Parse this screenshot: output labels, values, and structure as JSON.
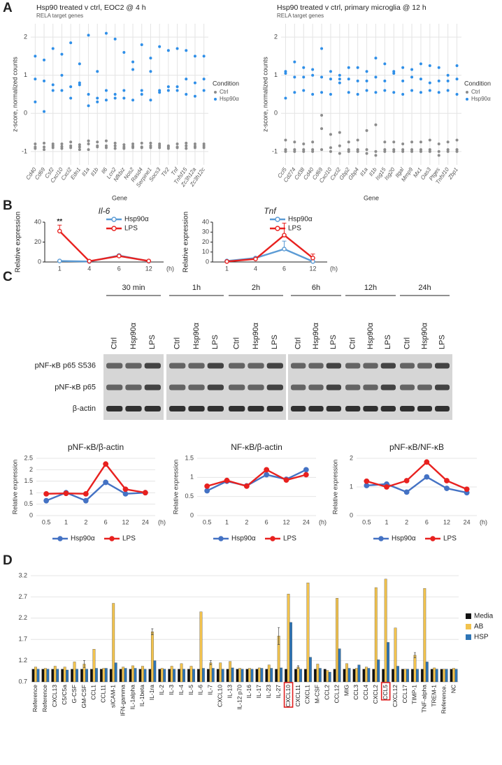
{
  "panels": [
    "A",
    "B",
    "C",
    "D"
  ],
  "blot": {
    "times": [
      "30 min",
      "1h",
      "2h",
      "6h",
      "12h",
      "24h"
    ],
    "lanes": [
      "Ctrl",
      "Hsp90α",
      "LPS"
    ],
    "rows": [
      "pNF-κB p65 S536",
      "pNF-κB p65",
      "β-actin"
    ]
  },
  "chart_data": [
    {
      "type": "strip",
      "title": "Hsp90 treated v ctrl, EOC2 @ 4 h",
      "subtitle": "RELA target genes",
      "xlabel": "Gene",
      "ylabel": "z-score, normalized counts",
      "legend_title": "Condition",
      "grid": true,
      "ylim": [
        -1.35,
        2.35
      ],
      "yticks": [
        -1,
        0,
        1,
        2
      ],
      "categories": [
        "Cd40",
        "Cd69",
        "Csf2",
        "Cxcl10",
        "Cxcl2",
        "Edn1",
        "Il1a",
        "Il1b",
        "Il6",
        "Lcn2",
        "Nfkbiz",
        "Nos2",
        "Rasd4",
        "Serpine1",
        "Socs3",
        "Tlr2",
        "Tnf",
        "Tnfsf15",
        "Zc3h12a",
        "Zc3h12c"
      ],
      "series": [
        {
          "name": "Ctrl",
          "color": "#8c8c8c",
          "values": [
            [
              -0.8,
              -0.88,
              -0.92
            ],
            [
              -0.78,
              -0.88,
              -0.95
            ],
            [
              -0.8,
              -0.85,
              -0.9
            ],
            [
              -0.8,
              -0.87,
              -0.92
            ],
            [
              -0.75,
              -0.85,
              -0.9
            ],
            [
              -0.82,
              -0.88,
              -0.95
            ],
            [
              -0.72,
              -0.8,
              -0.95
            ],
            [
              -0.75,
              -0.85,
              -0.88
            ],
            [
              -0.72,
              -0.85,
              -0.9
            ],
            [
              -0.78,
              -0.85,
              -0.92
            ],
            [
              -0.82,
              -0.88,
              -0.92
            ],
            [
              -0.8,
              -0.86,
              -0.9
            ],
            [
              -0.78,
              -0.88,
              -0.9
            ],
            [
              -0.78,
              -0.85,
              -0.9
            ],
            [
              -0.8,
              -0.85,
              -0.9
            ],
            [
              -0.85,
              -0.88,
              -0.92
            ],
            [
              -0.8,
              -0.88,
              -0.9
            ],
            [
              -0.78,
              -0.85,
              -0.92
            ],
            [
              -0.8,
              -0.86,
              -0.9
            ],
            [
              -0.8,
              -0.85,
              -0.9
            ]
          ]
        },
        {
          "name": "Hsp90α",
          "color": "#2f8fe8",
          "values": [
            [
              1.5,
              0.9,
              0.3
            ],
            [
              1.4,
              0.85,
              0.05
            ],
            [
              1.7,
              0.75,
              0.6
            ],
            [
              1.55,
              1.0,
              0.6
            ],
            [
              1.85,
              0.7,
              0.4
            ],
            [
              1.3,
              0.8,
              0.75
            ],
            [
              2.05,
              0.5,
              0.2
            ],
            [
              1.1,
              0.4,
              0.3
            ],
            [
              2.1,
              0.6,
              0.35
            ],
            [
              1.95,
              0.5,
              0.4
            ],
            [
              1.6,
              0.6,
              0.4
            ],
            [
              1.35,
              1.15,
              0.35
            ],
            [
              1.8,
              0.6,
              0.5
            ],
            [
              1.45,
              1.1,
              0.35
            ],
            [
              1.75,
              0.6,
              0.55
            ],
            [
              1.65,
              0.7,
              0.6
            ],
            [
              1.7,
              0.7,
              0.6
            ],
            [
              1.65,
              0.9,
              0.5
            ],
            [
              1.5,
              0.8,
              0.45
            ],
            [
              1.5,
              0.9,
              0.6
            ]
          ]
        }
      ]
    },
    {
      "type": "strip",
      "title": "Hsp90 treated v ctrl, primary microglia @ 12 h",
      "subtitle": "RELA target genes",
      "xlabel": "Gene",
      "ylabel": "z-score, normalized counts",
      "legend_title": "Condition",
      "grid": true,
      "ylim": [
        -1.35,
        2.35
      ],
      "yticks": [
        -1,
        0,
        1,
        2
      ],
      "categories": [
        "Ccl5",
        "Cd274",
        "Cd38",
        "Cd40",
        "Cd69",
        "Cxcl10",
        "Cxcl2",
        "Gbp2",
        "Gbp4",
        "Il1a",
        "Il1b",
        "Isg15",
        "Isg20",
        "Itgal",
        "Mmp9",
        "Mx1",
        "Oas3",
        "Ptges",
        "Tnfsf10",
        "Zbp1"
      ],
      "series": [
        {
          "name": "Ctrl",
          "color": "#8c8c8c",
          "values": [
            [
              -0.7,
              -0.95,
              -1.0
            ],
            [
              -0.75,
              -0.95,
              -1.0
            ],
            [
              -0.8,
              -0.95,
              -1.0
            ],
            [
              -0.75,
              -0.95,
              -1.0
            ],
            [
              -0.05,
              -0.4,
              -0.95
            ],
            [
              -0.55,
              -0.9,
              -1.0
            ],
            [
              -0.5,
              -0.85,
              -1.05
            ],
            [
              -0.75,
              -0.95,
              -1.0
            ],
            [
              -0.7,
              -0.95,
              -1.0
            ],
            [
              -0.45,
              -0.95,
              -1.05
            ],
            [
              -0.3,
              -1.0,
              -1.1
            ],
            [
              -0.75,
              -0.95,
              -1.0
            ],
            [
              -0.75,
              -0.95,
              -1.0
            ],
            [
              -0.8,
              -0.95,
              -1.0
            ],
            [
              -0.75,
              -0.95,
              -1.0
            ],
            [
              -0.75,
              -0.95,
              -1.0
            ],
            [
              -0.7,
              -0.95,
              -1.0
            ],
            [
              -0.8,
              -1.0,
              -1.1
            ],
            [
              -0.75,
              -0.95,
              -1.0
            ],
            [
              -0.7,
              -0.95,
              -1.0
            ]
          ]
        },
        {
          "name": "Hsp90α",
          "color": "#2f8fe8",
          "values": [
            [
              1.1,
              1.05,
              0.4
            ],
            [
              1.35,
              0.95,
              0.55
            ],
            [
              1.2,
              0.95,
              0.6
            ],
            [
              1.15,
              1.0,
              0.5
            ],
            [
              1.7,
              0.95,
              0.55
            ],
            [
              1.1,
              0.9,
              0.5
            ],
            [
              1.0,
              0.8,
              0.9
            ],
            [
              1.2,
              0.9,
              0.55
            ],
            [
              1.2,
              0.85,
              0.5
            ],
            [
              1.1,
              0.85,
              0.6
            ],
            [
              1.45,
              0.95,
              0.55
            ],
            [
              1.3,
              0.85,
              0.6
            ],
            [
              1.1,
              1.05,
              0.55
            ],
            [
              1.2,
              0.85,
              0.5
            ],
            [
              1.15,
              0.95,
              0.6
            ],
            [
              1.3,
              0.9,
              0.55
            ],
            [
              1.25,
              0.8,
              0.6
            ],
            [
              1.2,
              0.85,
              0.55
            ],
            [
              1.0,
              0.85,
              0.6
            ],
            [
              1.25,
              0.9,
              0.5
            ]
          ]
        }
      ]
    },
    {
      "type": "line",
      "title": "Il-6",
      "ylabel": "Relative expression",
      "xunit": "(h)",
      "grid": false,
      "legend": "top-right",
      "categories": [
        "1",
        "4",
        "6",
        "12"
      ],
      "ylim": [
        0,
        40
      ],
      "yticks": [
        0,
        20,
        40
      ],
      "significance_labels": [
        "**",
        null,
        null,
        null
      ],
      "series": [
        {
          "name": "Hsp90α",
          "color": "#5b9bd5",
          "values": [
            1,
            0.5,
            6.5,
            0.8
          ],
          "errors": [
            null,
            null,
            1,
            null
          ]
        },
        {
          "name": "LPS",
          "color": "#e8211f",
          "values": [
            31,
            0.8,
            6,
            1
          ],
          "errors": [
            6,
            null,
            1,
            null
          ]
        }
      ]
    },
    {
      "type": "line",
      "title": "Tnf",
      "ylabel": "Relative expression",
      "xunit": "(h)",
      "grid": false,
      "legend": "top-right",
      "categories": [
        "1",
        "4",
        "6",
        "12"
      ],
      "ylim": [
        0,
        40
      ],
      "yticks": [
        0,
        10,
        20,
        30,
        40
      ],
      "series": [
        {
          "name": "Hsp90α",
          "color": "#5b9bd5",
          "values": [
            1,
            4,
            13,
            0.5
          ],
          "errors": [
            null,
            1,
            8,
            null
          ]
        },
        {
          "name": "LPS",
          "color": "#e8211f",
          "values": [
            0.5,
            3,
            27,
            4
          ],
          "errors": [
            null,
            null,
            12,
            4
          ]
        }
      ]
    },
    {
      "type": "line",
      "title": "pNF-κB/β-actin",
      "ylabel": "Relative expression",
      "xunit": "(h)",
      "grid": true,
      "legend": "bottom",
      "categories": [
        "0.5",
        "1",
        "2",
        "6",
        "12",
        "24"
      ],
      "ylim": [
        0,
        2.5
      ],
      "yticks": [
        0,
        0.5,
        1,
        1.5,
        2,
        2.5
      ],
      "series": [
        {
          "name": "Hsp90α",
          "color": "#4472c4",
          "values": [
            0.65,
            1,
            0.65,
            1.45,
            0.95,
            1
          ]
        },
        {
          "name": "LPS",
          "color": "#e8211f",
          "values": [
            0.95,
            0.97,
            0.95,
            2.25,
            1.15,
            1
          ]
        }
      ]
    },
    {
      "type": "line",
      "title": "NF-κB/β-actin",
      "ylabel": "Relative expression",
      "xunit": "(h)",
      "grid": true,
      "legend": "bottom",
      "categories": [
        "0.5",
        "1",
        "2",
        "6",
        "12",
        "24"
      ],
      "ylim": [
        0,
        1.5
      ],
      "yticks": [
        0,
        0.5,
        1,
        1.5
      ],
      "series": [
        {
          "name": "Hsp90α",
          "color": "#4472c4",
          "values": [
            0.65,
            0.9,
            0.78,
            1.07,
            0.95,
            1.2
          ]
        },
        {
          "name": "LPS",
          "color": "#e8211f",
          "values": [
            0.77,
            0.92,
            0.77,
            1.2,
            0.93,
            1.07
          ]
        }
      ]
    },
    {
      "type": "line",
      "title": "pNF-κB/NF-κB",
      "ylabel": "Relative expression",
      "xunit": "(h)",
      "grid": true,
      "legend": "bottom",
      "categories": [
        "0.5",
        "1",
        "2",
        "6",
        "12",
        "24"
      ],
      "ylim": [
        0,
        2
      ],
      "yticks": [
        0,
        1,
        2
      ],
      "series": [
        {
          "name": "Hsp90α",
          "color": "#4472c4",
          "values": [
            1.05,
            1.1,
            0.82,
            1.35,
            0.95,
            0.8
          ]
        },
        {
          "name": "LPS",
          "color": "#e8211f",
          "values": [
            1.2,
            1.0,
            1.22,
            1.87,
            1.22,
            0.92
          ]
        }
      ]
    },
    {
      "type": "bar",
      "grid": true,
      "ylim": [
        0.7,
        3.2
      ],
      "yticks": [
        0.7,
        1.2,
        1.7,
        2.2,
        2.7,
        3.2
      ],
      "highlight_color": "#e02020",
      "highlight_categories": [
        26,
        36
      ],
      "categories": [
        "Reference",
        "Reference",
        "CXCL13",
        "C5/C5a",
        "G-CSF",
        "GM-CSF",
        "CCL1",
        "CCL11",
        "sICAM-1",
        "IFN-gamma",
        "IL-1alpha",
        "IL-1beta",
        "IL-1ra",
        "IL-2",
        "IL-3",
        "IL-4",
        "IL-5",
        "IL-6",
        "IL-7",
        "CXCL10",
        "IL-13",
        "IL-12 p70",
        "IL-16",
        "IL-17",
        "IL-23",
        "IL-27",
        "CXCL10",
        "CXCL11",
        "CXCL1",
        "M-CSF",
        "CCL2",
        "CCL12",
        "MIG",
        "CCL3",
        "CCL4",
        "CXCL2",
        "CCL5",
        "CXCL12",
        "CCL17",
        "TIMP-1",
        "TNF-alpha",
        "TREM-1",
        "Reference.",
        "NC"
      ],
      "series": [
        {
          "name": "Media",
          "color": "#111111",
          "values": [
            1,
            1,
            1,
            1,
            1,
            1,
            1,
            1,
            1,
            1,
            1,
            1,
            1,
            1,
            1,
            1,
            1,
            1,
            1,
            1,
            1,
            1,
            1,
            1,
            1,
            1,
            1,
            1,
            1,
            1,
            1,
            1,
            1,
            1,
            1,
            1,
            1,
            1,
            1,
            1,
            1,
            1,
            1,
            1
          ]
        },
        {
          "name": "AB",
          "color": "#f2c34e",
          "values": [
            1.05,
            1.02,
            1.07,
            1.05,
            1.17,
            1.12,
            1.47,
            1.02,
            2.55,
            1.05,
            1.08,
            1.07,
            1.88,
            1.02,
            1.07,
            1.13,
            1.07,
            2.35,
            1.15,
            1.15,
            1.18,
            1.02,
            1.02,
            1.03,
            1.1,
            1.78,
            2.77,
            1.05,
            3.03,
            1.12,
            0.97,
            2.67,
            1.13,
            1.02,
            1.05,
            2.92,
            3.12,
            1.97,
            1.0,
            1.33,
            2.9,
            1.03,
            1.0,
            1.02
          ],
          "errors": [
            null,
            null,
            null,
            null,
            null,
            0.08,
            null,
            null,
            null,
            null,
            null,
            null,
            0.07,
            null,
            null,
            null,
            null,
            null,
            0.05,
            null,
            null,
            null,
            null,
            null,
            null,
            0.2,
            null,
            0.03,
            null,
            null,
            null,
            null,
            null,
            null,
            null,
            null,
            null,
            null,
            null,
            0.06,
            null,
            null,
            null,
            null
          ]
        },
        {
          "name": "HSP",
          "color": "#2e75b6",
          "values": [
            1,
            1,
            1,
            0.98,
            1,
            1,
            1.02,
            1.02,
            1.15,
            1.02,
            1.02,
            1,
            1.2,
            1,
            1,
            1,
            1,
            1.02,
            1.02,
            1,
            1.03,
            1,
            1,
            1.02,
            1.02,
            1.03,
            2.1,
            1,
            1.28,
            1.02,
            0.93,
            1.48,
            1.02,
            1.1,
            1.02,
            1.22,
            1.63,
            1.07,
            1,
            1,
            1.17,
            1,
            1,
            1
          ]
        }
      ]
    }
  ]
}
